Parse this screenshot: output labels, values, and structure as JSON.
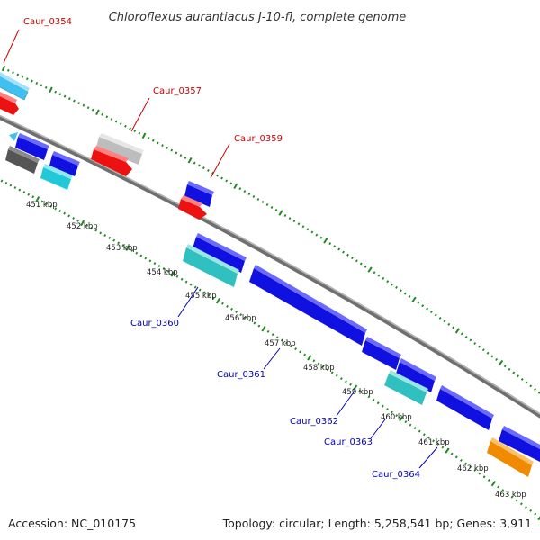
{
  "header": {
    "title": "Chloroflexus aurantiacus J-10-fl, complete genome"
  },
  "footer": {
    "accession": "Accession: NC_010175",
    "summary": "Topology: circular; Length: 5,258,541 bp; Genes: 3,911"
  },
  "scale_labels": [
    "451 kbp",
    "452 kbp",
    "453 kbp",
    "454 kbp",
    "455 kbp",
    "456 kbp",
    "457 kbp",
    "458 kbp",
    "459 kbp",
    "460 kbp",
    "461 kbp",
    "462 kbp",
    "463 kbp"
  ],
  "gene_labels": {
    "top": [
      "Caur_0354",
      "Caur_0357",
      "Caur_0359"
    ],
    "bottom": [
      "Caur_0360",
      "Caur_0361",
      "Caur_0362",
      "Caur_0363",
      "Caur_0364"
    ]
  },
  "colors": {
    "backbone": "#8c8c8c",
    "tick": "#1f8a1f",
    "top_label": "#cc0000",
    "bottom_label": "#0000bb",
    "gene_blue": "#1010e0",
    "gene_red": "#ee1111",
    "gene_cyan": "#20c8d8",
    "gene_teal": "#30c0c0",
    "gene_lightblue": "#40c0f0",
    "gene_grey": "#bdbdbd",
    "gene_darkgrey": "#555555",
    "gene_orange": "#f08a00"
  }
}
